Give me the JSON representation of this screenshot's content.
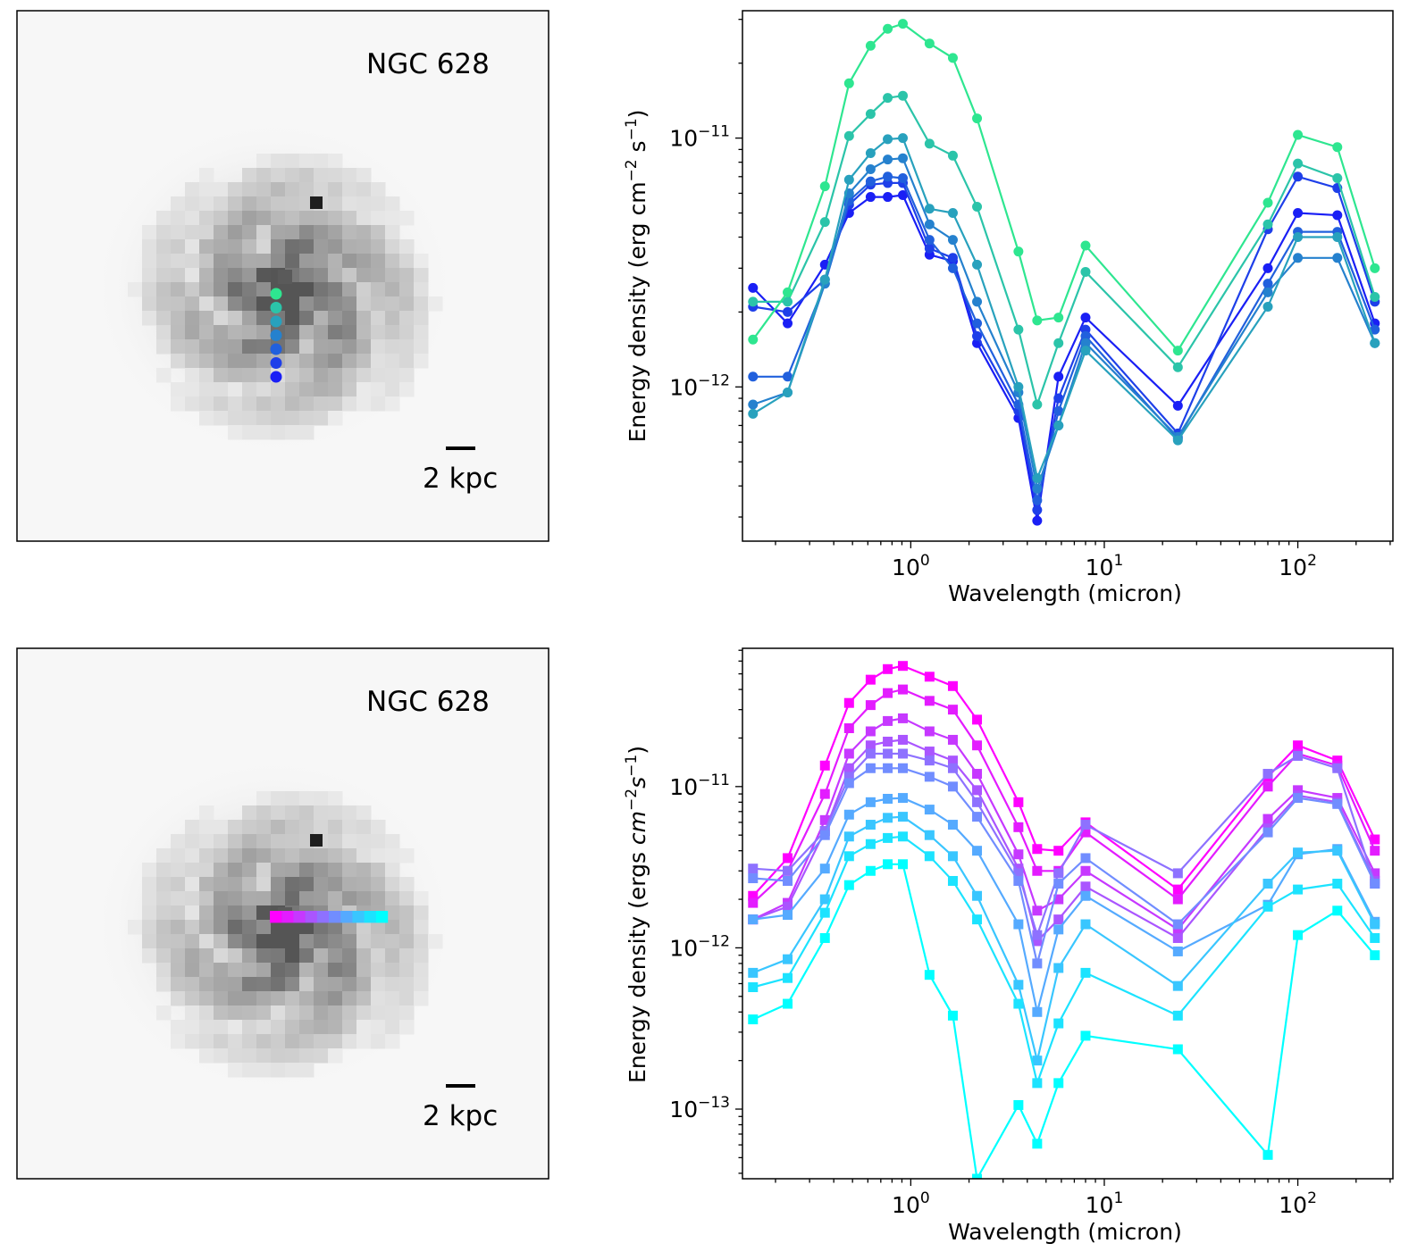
{
  "image_panels": [
    {
      "title": "NGC 628",
      "scale_label": "2 kpc",
      "markers": {
        "orientation": "vertical",
        "shape": "circle",
        "count": 7,
        "colors": [
          "#1a1ff5",
          "#1e3fe9",
          "#2160dd",
          "#2581ce",
          "#28a1bd",
          "#2bc4a9",
          "#2ee690"
        ]
      }
    },
    {
      "title": "NGC 628",
      "scale_label": "2 kpc",
      "markers": {
        "orientation": "horizontal",
        "shape": "square",
        "count": 10,
        "colors": [
          "#ff00ff",
          "#e31cff",
          "#c638ff",
          "#aa55ff",
          "#8e71ff",
          "#718dff",
          "#55aaff",
          "#39c6ff",
          "#1ce3ff",
          "#00ffff"
        ]
      }
    }
  ],
  "chart_data": [
    {
      "type": "line",
      "xlabel": "Wavelength (micron)",
      "ylabel": "Energy density (erg cm^-2 s^-1)",
      "xscale": "log",
      "yscale": "log",
      "xlim": [
        0.135,
        310
      ],
      "ylim": [
        2.4e-13,
        3.25e-11
      ],
      "x_ticks": [
        "10^0",
        "10^1",
        "10^2"
      ],
      "y_ticks": [
        "10^-12",
        "10^-11"
      ],
      "marker": "circle",
      "x": [
        0.153,
        0.231,
        0.36,
        0.48,
        0.62,
        0.76,
        0.91,
        1.25,
        1.65,
        2.2,
        3.6,
        4.5,
        5.8,
        8.0,
        24,
        70,
        100,
        160,
        250
      ],
      "series": [
        {
          "color": "#1a1ff5",
          "values": [
            2.5e-12,
            1.8e-12,
            3.1e-12,
            5e-12,
            5.8e-12,
            5.8e-12,
            5.9e-12,
            3.4e-12,
            3.2e-12,
            1.5e-12,
            7.5e-13,
            2.9e-13,
            1.1e-12,
            1.9e-12,
            8.4e-13,
            3e-12,
            5e-12,
            4.9e-12,
            1.8e-12
          ]
        },
        {
          "color": "#1e3fe9",
          "values": [
            2.1e-12,
            2e-12,
            2.7e-12,
            5.4e-12,
            6.5e-12,
            6.6e-12,
            6.6e-12,
            3.6e-12,
            3.3e-12,
            1.6e-12,
            8e-13,
            3.2e-13,
            9e-13,
            1.7e-12,
            6.5e-13,
            4.3e-12,
            7e-12,
            6.3e-12,
            2.2e-12
          ]
        },
        {
          "color": "#2160dd",
          "values": [
            1.1e-12,
            1.1e-12,
            2.6e-12,
            5.6e-12,
            6.7e-12,
            7e-12,
            6.9e-12,
            3.9e-12,
            3e-12,
            1.8e-12,
            8.5e-13,
            3.5e-13,
            8e-13,
            1.6e-12,
            6.2e-13,
            2.6e-12,
            4.2e-12,
            4.2e-12,
            1.7e-12
          ]
        },
        {
          "color": "#2581ce",
          "values": [
            8.5e-13,
            9.5e-13,
            2.6e-12,
            6e-12,
            7.5e-12,
            8.2e-12,
            8.3e-12,
            4.5e-12,
            3.9e-12,
            2.2e-12,
            9.5e-13,
            3.9e-13,
            7e-13,
            1.5e-12,
            6.3e-13,
            2.4e-12,
            3.3e-12,
            3.3e-12,
            1.5e-12
          ]
        },
        {
          "color": "#28a1bd",
          "values": [
            7.8e-13,
            9.5e-13,
            2.7e-12,
            6.8e-12,
            8.7e-12,
            9.9e-12,
            1e-11,
            5.2e-12,
            5e-12,
            3.1e-12,
            1e-12,
            4.3e-13,
            7e-13,
            1.4e-12,
            6.1e-13,
            2.1e-12,
            4e-12,
            4e-12,
            1.5e-12
          ]
        },
        {
          "color": "#2bc4a9",
          "values": [
            2.2e-12,
            2.2e-12,
            4.6e-12,
            1.02e-11,
            1.25e-11,
            1.45e-11,
            1.48e-11,
            9.5e-12,
            8.5e-12,
            5.3e-12,
            1.7e-12,
            8.5e-13,
            1.5e-12,
            2.9e-12,
            1.2e-12,
            4.5e-12,
            7.9e-12,
            6.9e-12,
            2.3e-12
          ]
        },
        {
          "color": "#2ee690",
          "values": [
            1.55e-12,
            2.4e-12,
            6.4e-12,
            1.66e-11,
            2.35e-11,
            2.75e-11,
            2.88e-11,
            2.4e-11,
            2.1e-11,
            1.2e-11,
            3.5e-12,
            1.85e-12,
            1.9e-12,
            3.7e-12,
            1.4e-12,
            5.5e-12,
            1.03e-11,
            9.2e-12,
            3e-12
          ]
        }
      ]
    },
    {
      "type": "line",
      "xlabel": "Wavelength (micron)",
      "ylabel": "Energy density (ergs cm^-2 s^-1)",
      "xscale": "log",
      "yscale": "log",
      "xlim": [
        0.135,
        310
      ],
      "ylim": [
        3.7e-14,
        7.2e-11
      ],
      "x_ticks": [
        "10^0",
        "10^1",
        "10^2"
      ],
      "y_ticks": [
        "10^-13",
        "10^-12",
        "10^-11"
      ],
      "marker": "square",
      "x": [
        0.153,
        0.231,
        0.36,
        0.48,
        0.62,
        0.76,
        0.91,
        1.25,
        1.65,
        2.2,
        3.6,
        4.5,
        5.8,
        8.0,
        24,
        70,
        100,
        160,
        250
      ],
      "series": [
        {
          "color": "#ff00ff",
          "values": [
            2.1e-12,
            3.6e-12,
            1.35e-11,
            3.3e-11,
            4.6e-11,
            5.35e-11,
            5.6e-11,
            4.8e-11,
            4.2e-11,
            2.6e-11,
            8e-12,
            4.1e-12,
            4e-12,
            6e-12,
            2.3e-12,
            1.15e-11,
            1.8e-11,
            1.45e-11,
            4.7e-12
          ]
        },
        {
          "color": "#e31cff",
          "values": [
            1.9e-12,
            3e-12,
            9e-12,
            2.3e-11,
            3.2e-11,
            3.8e-11,
            4e-11,
            3.4e-11,
            3e-11,
            1.8e-11,
            5.6e-12,
            3e-12,
            3e-12,
            5.2e-12,
            2e-12,
            1e-11,
            1.6e-11,
            1.35e-11,
            4e-12
          ]
        },
        {
          "color": "#c638ff",
          "values": [
            1.5e-12,
            1.9e-12,
            6.2e-12,
            1.6e-11,
            2.2e-11,
            2.55e-11,
            2.65e-11,
            2.2e-11,
            1.95e-11,
            1.2e-11,
            3.8e-12,
            1.7e-12,
            2e-12,
            3e-12,
            1.3e-12,
            6.3e-12,
            9.5e-12,
            8.5e-12,
            2.9e-12
          ]
        },
        {
          "color": "#aa55ff",
          "values": [
            1.5e-12,
            1.8e-12,
            5.3e-12,
            1.3e-11,
            1.8e-11,
            1.9e-11,
            1.95e-11,
            1.65e-11,
            1.45e-11,
            9.5e-12,
            3.1e-12,
            1.1e-12,
            1.5e-12,
            2.4e-12,
            1.15e-12,
            5.5e-12,
            8.8e-12,
            8e-12,
            2.6e-12
          ]
        },
        {
          "color": "#8e71ff",
          "values": [
            3.1e-12,
            3e-12,
            5.3e-12,
            1.15e-11,
            1.6e-11,
            1.6e-11,
            1.6e-11,
            1.45e-11,
            1.3e-11,
            8e-12,
            2.9e-12,
            1.2e-12,
            2.9e-12,
            5.8e-12,
            2.9e-12,
            1.2e-11,
            1.55e-11,
            1.3e-11,
            2.5e-12
          ]
        },
        {
          "color": "#718dff",
          "values": [
            2.7e-12,
            2.6e-12,
            5e-12,
            1.05e-11,
            1.3e-11,
            1.3e-11,
            1.3e-11,
            1.15e-11,
            1e-11,
            6.5e-12,
            2.6e-12,
            8e-13,
            2.5e-12,
            3.6e-12,
            1.4e-12,
            5.2e-12,
            8.5e-12,
            7.8e-12,
            2.5e-12
          ]
        },
        {
          "color": "#55aaff",
          "values": [
            1.5e-12,
            1.6e-12,
            3.1e-12,
            6.7e-12,
            8e-12,
            8.4e-12,
            8.5e-12,
            7.2e-12,
            5.8e-12,
            4e-12,
            1.4e-12,
            4e-13,
            1.3e-12,
            2.1e-12,
            9.5e-13,
            1.85e-12,
            3.8e-12,
            4.1e-12,
            1.45e-12
          ]
        },
        {
          "color": "#39c6ff",
          "values": [
            7e-13,
            8.5e-13,
            2e-12,
            4.9e-12,
            5.8e-12,
            6.4e-12,
            6.5e-12,
            5e-12,
            3.7e-12,
            2.1e-12,
            5.9e-13,
            2e-13,
            7.5e-13,
            1.4e-12,
            5.8e-13,
            2.5e-12,
            3.9e-12,
            4e-12,
            1.4e-12
          ]
        },
        {
          "color": "#1ce3ff",
          "values": [
            5.7e-13,
            6.5e-13,
            1.65e-12,
            3.7e-12,
            4.4e-12,
            4.8e-12,
            4.9e-12,
            3.7e-12,
            2.6e-12,
            1.5e-12,
            4.5e-13,
            1.45e-13,
            3.4e-13,
            7e-13,
            3.8e-13,
            1.8e-12,
            2.3e-12,
            2.5e-12,
            1.15e-12
          ]
        },
        {
          "color": "#00ffff",
          "values": [
            3.6e-13,
            4.5e-13,
            1.15e-12,
            2.45e-12,
            3e-12,
            3.3e-12,
            3.3e-12,
            6.8e-13,
            3.8e-13,
            3.7e-14,
            1.06e-13,
            6.1e-14,
            1.45e-13,
            2.85e-13,
            2.35e-13,
            5.2e-14,
            1.2e-12,
            1.7e-12,
            9e-13
          ]
        }
      ]
    }
  ]
}
